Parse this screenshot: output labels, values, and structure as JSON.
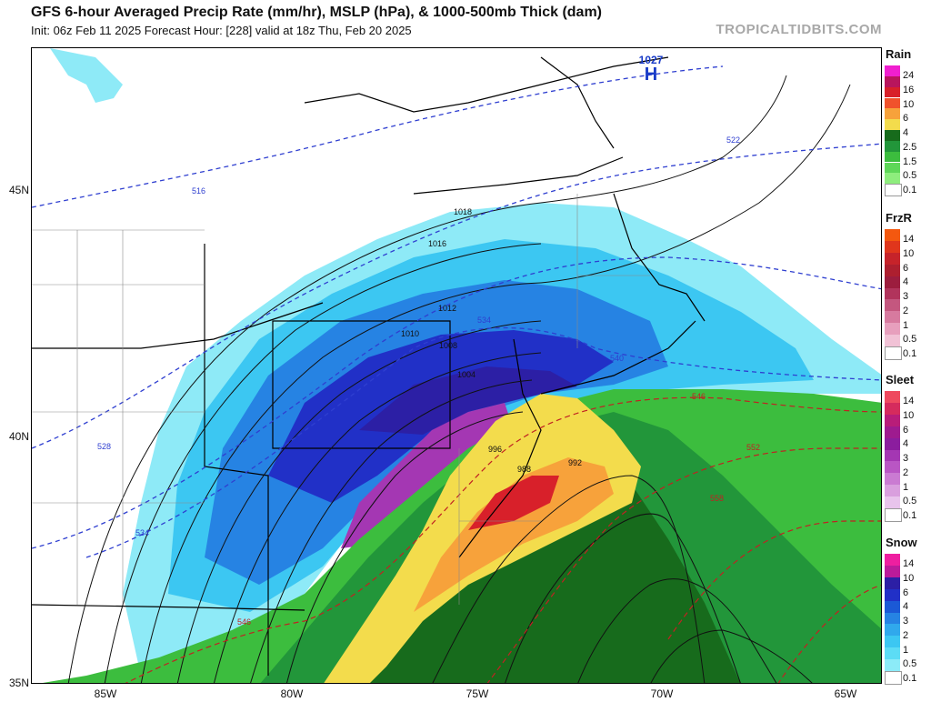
{
  "header": {
    "title": "GFS 6-hour Averaged Precip Rate (mm/hr), MSLP (hPa), & 1000-500mb Thick (dam)",
    "subtitle": "Init: 06z Feb 11 2025   Forecast Hour: [228]   valid at 18z Thu, Feb 20 2025",
    "brand": "TROPICALTIDBITS.COM"
  },
  "axes": {
    "lat_labels": [
      "45N",
      "40N",
      "35N"
    ],
    "lon_labels": [
      "85W",
      "80W",
      "75W",
      "70W",
      "65W"
    ]
  },
  "pressure_labels": [
    "1018",
    "1016",
    "1012",
    "1010",
    "1008",
    "1004",
    "996",
    "992",
    "988"
  ],
  "thickness_labels": [
    "516",
    "522",
    "528",
    "534",
    "534",
    "540",
    "546",
    "546",
    "552",
    "558"
  ],
  "high_center": {
    "value": "1027",
    "symbol": "H"
  },
  "legends": [
    {
      "title": "Rain",
      "labels": [
        "24",
        "16",
        "10",
        "6",
        "4",
        "2.5",
        "1.5",
        "0.5",
        "0.1"
      ],
      "colors": [
        "#f01fcf",
        "#b8155d",
        "#d8202a",
        "#f0522c",
        "#f7a23b",
        "#f3dc4c",
        "#176b1c",
        "#22963a",
        "#3cbd3e",
        "#5ed758",
        "#8eed7d",
        "#ffffff"
      ]
    },
    {
      "title": "FrzR",
      "labels": [
        "14",
        "10",
        "6",
        "4",
        "3",
        "2",
        "1",
        "0.5",
        "0.1"
      ],
      "colors": [
        "#f4580f",
        "#e0361c",
        "#c6232a",
        "#ad1f2f",
        "#9c1d3e",
        "#b1345c",
        "#c4577f",
        "#d77a9f",
        "#e79fbd",
        "#f1c2d6",
        "#ffffff"
      ]
    },
    {
      "title": "Sleet",
      "labels": [
        "14",
        "10",
        "6",
        "4",
        "3",
        "2",
        "1",
        "0.5",
        "0.1"
      ],
      "colors": [
        "#ee4a5f",
        "#d52b5d",
        "#b81d79",
        "#9e1b8f",
        "#8b1d9e",
        "#a437b3",
        "#b956c4",
        "#ca7bd2",
        "#d99fde",
        "#e8c4ec",
        "#ffffff"
      ]
    },
    {
      "title": "Snow",
      "labels": [
        "14",
        "10",
        "6",
        "4",
        "3",
        "2",
        "1",
        "0.5",
        "0.1"
      ],
      "colors": [
        "#ee1fa0",
        "#bb1b9a",
        "#2c1fa5",
        "#2130c7",
        "#1b59d6",
        "#2683e3",
        "#30a9ec",
        "#3cc7f2",
        "#5cdcf5",
        "#8cebf8",
        "#ffffff"
      ]
    }
  ]
}
